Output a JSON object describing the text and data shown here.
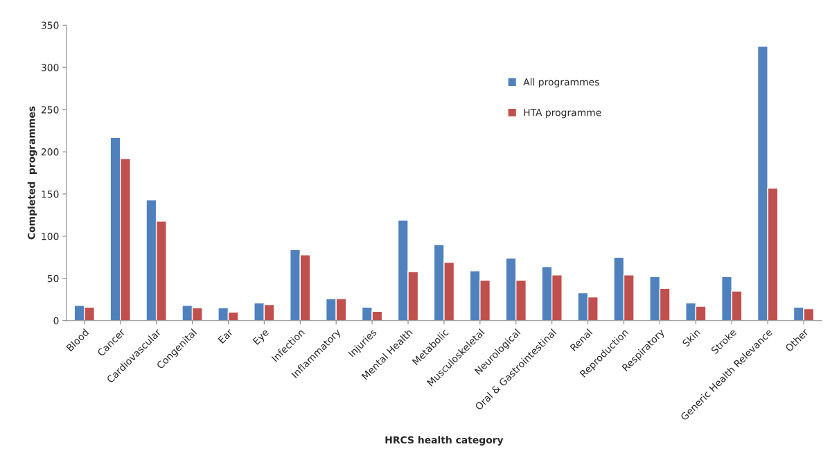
{
  "chart_data": {
    "type": "bar",
    "xlabel": "HRCS health category",
    "ylabel": "Completed  programmes",
    "categories": [
      "Blood",
      "Cancer",
      "Cardiovascular",
      "Congenital",
      "Ear",
      "Eye",
      "Infection",
      "Inflammatory",
      "Injuries",
      "Mental Health",
      "Metabolic",
      "Musculoskeletal",
      "Neurological",
      "Oral & Gastrointestinal",
      "Renal",
      "Reproduction",
      "Respiratory",
      "Skin",
      "Stroke",
      "Generic Health Relevance",
      "Other"
    ],
    "series": [
      {
        "name": "All programmes",
        "color": "#4f81bd",
        "values": [
          18,
          217,
          143,
          18,
          15,
          21,
          84,
          26,
          16,
          119,
          90,
          59,
          74,
          64,
          33,
          75,
          52,
          21,
          52,
          325,
          16
        ]
      },
      {
        "name": "HTA programme",
        "color": "#c0504d",
        "values": [
          16,
          192,
          118,
          15,
          10,
          19,
          78,
          26,
          11,
          58,
          69,
          48,
          48,
          54,
          28,
          54,
          38,
          17,
          35,
          157,
          14
        ]
      }
    ],
    "ylim": [
      0,
      350
    ],
    "yticks": [
      0,
      50,
      100,
      150,
      200,
      250,
      300,
      350
    ],
    "grid": false,
    "legend": "top right"
  }
}
